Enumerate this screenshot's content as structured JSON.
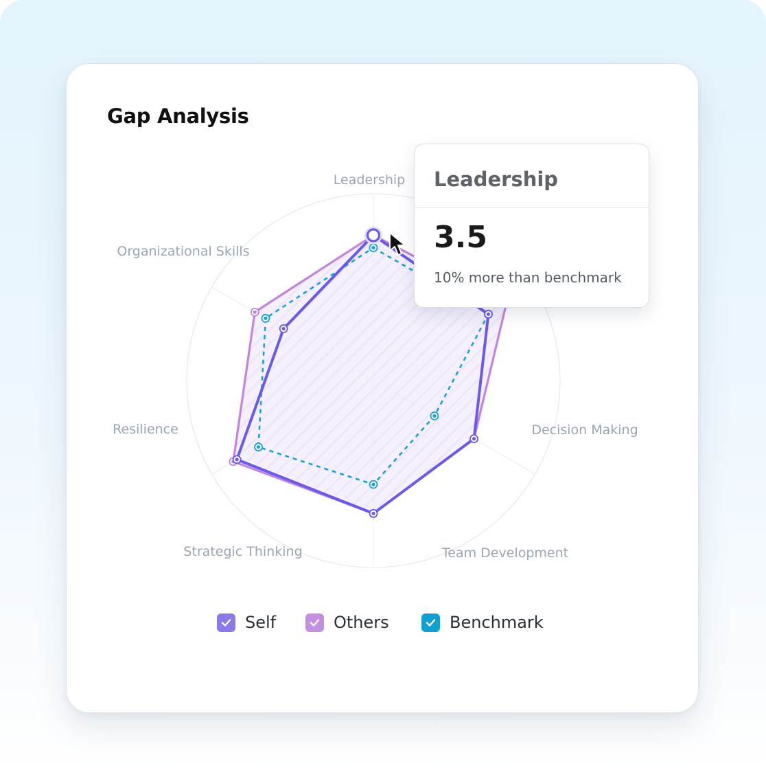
{
  "card": {
    "title": "Gap Analysis"
  },
  "chart_data": {
    "type": "radar",
    "title": "Gap Analysis",
    "axes": [
      "Leadership",
      "Decision Making",
      "Team Development",
      "Strategic Thinking",
      "Resilience",
      "Organizational Skills"
    ],
    "rmax": 4.5,
    "grid": true,
    "series": [
      {
        "name": "Self",
        "color": "#6a5ae8",
        "style": "solid",
        "values": [
          3.5,
          3.2,
          2.8,
          3.2,
          3.8,
          2.5
        ]
      },
      {
        "name": "Others",
        "color": "#c184e0",
        "style": "solid",
        "values": [
          3.5,
          3.7,
          2.8,
          3.2,
          3.9,
          3.3
        ]
      },
      {
        "name": "Benchmark",
        "color": "#14a3d6",
        "style": "dashed",
        "values": [
          3.2,
          3.2,
          1.7,
          2.5,
          3.2,
          3.0
        ]
      }
    ],
    "legend": "bottom"
  },
  "tooltip": {
    "title": "Leadership",
    "value": "3.5",
    "note": "10% more than benchmark"
  },
  "legend": [
    {
      "label": "Self",
      "color": "#8b7ae6",
      "checked": true
    },
    {
      "label": "Others",
      "color": "#c38fe0",
      "checked": true
    },
    {
      "label": "Benchmark",
      "color": "#129fd4",
      "checked": true
    }
  ]
}
